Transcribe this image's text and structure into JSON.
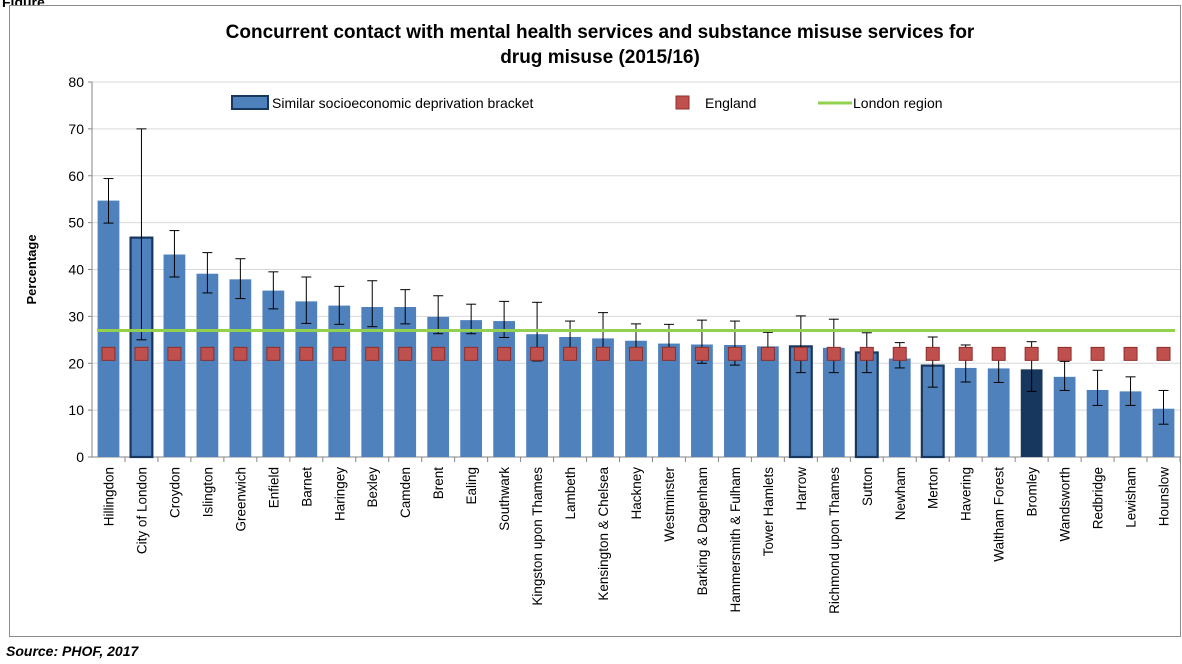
{
  "figure_label": "Figure",
  "source": "Source: PHOF, 2017",
  "colors": {
    "bar": "#4f81bd",
    "bar_highlight": "#17375e",
    "bar_border_similar": "#17375e",
    "england_marker": "#c0504d",
    "london_line": "#92d050",
    "error_bar": "#000000"
  },
  "chart_data": {
    "type": "bar",
    "title": "Concurrent contact with mental health services and substance misuse services for drug misuse (2015/16)",
    "ylabel": "Percentage",
    "xlabel": "",
    "ylim": [
      0,
      80
    ],
    "yticks": [
      0,
      10,
      20,
      30,
      40,
      50,
      60,
      70,
      80
    ],
    "grid": true,
    "legend_position": "top",
    "legend": {
      "similar": "Similar socioeconomic deprivation bracket",
      "england": "England",
      "london": "London region"
    },
    "england_value": 22,
    "london_value": 27,
    "categories": [
      "Hillingdon",
      "City of London",
      "Croydon",
      "Islington",
      "Greenwich",
      "Enfield",
      "Barnet",
      "Haringey",
      "Bexley",
      "Camden",
      "Brent",
      "Ealing",
      "Southwark",
      "Kingston upon Thames",
      "Lambeth",
      "Kensington & Chelsea",
      "Hackney",
      "Westminster",
      "Barking & Dagenham",
      "Hammersmith & Fulham",
      "Tower Hamlets",
      "Harrow",
      "Richmond upon Thames",
      "Sutton",
      "Newham",
      "Merton",
      "Havering",
      "Waltham Forest",
      "Bromley",
      "Wandsworth",
      "Redbridge",
      "Lewisham",
      "Hounslow"
    ],
    "values": [
      54.7,
      46.8,
      43.2,
      39.1,
      37.9,
      35.5,
      33.2,
      32.3,
      32.0,
      32.0,
      29.9,
      29.2,
      29.0,
      26.2,
      25.6,
      25.3,
      24.8,
      24.2,
      24.0,
      23.9,
      23.6,
      23.6,
      23.3,
      22.3,
      21.0,
      19.5,
      19.0,
      18.9,
      18.7,
      17.1,
      14.3,
      14.0,
      10.3
    ],
    "ci_lower": [
      49.9,
      25.0,
      38.4,
      35.0,
      33.8,
      31.6,
      28.5,
      28.3,
      27.8,
      28.4,
      26.3,
      26.3,
      25.5,
      20.5,
      22.6,
      20.8,
      22.0,
      20.9,
      20.0,
      19.6,
      21.0,
      18.0,
      18.0,
      18.0,
      19.0,
      14.9,
      16.0,
      15.9,
      14.0,
      14.2,
      11.0,
      11.0,
      7.0
    ],
    "ci_upper": [
      59.4,
      70.0,
      48.3,
      43.6,
      42.3,
      39.5,
      38.4,
      36.4,
      37.6,
      35.7,
      34.4,
      32.6,
      33.2,
      33.0,
      29.0,
      30.8,
      28.4,
      28.3,
      29.2,
      29.0,
      26.6,
      30.1,
      29.4,
      26.5,
      24.4,
      25.6,
      23.9,
      22.3,
      24.6,
      20.4,
      18.5,
      17.1,
      14.2
    ],
    "similar_bracket": [
      "City of London",
      "Harrow",
      "Sutton",
      "Merton"
    ],
    "highlighted": "Bromley"
  }
}
